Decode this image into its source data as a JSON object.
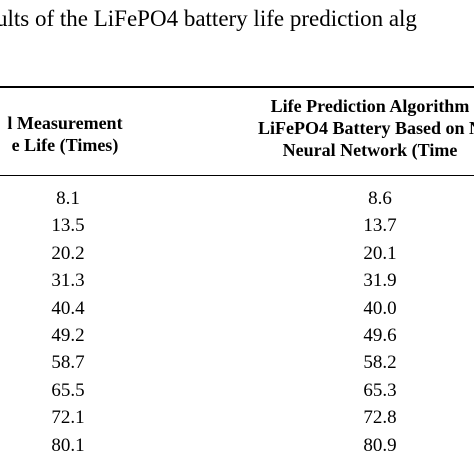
{
  "caption": "ults of the LiFePO4 battery life prediction alg",
  "table": {
    "headers": [
      [
        "l Measurement",
        "e Life (Times)"
      ],
      [
        "Life Prediction Algorithm",
        "LiFePO4 Battery Based on N",
        "Neural Network (Time"
      ]
    ],
    "rows": [
      [
        "8.1",
        "8.6"
      ],
      [
        "13.5",
        "13.7"
      ],
      [
        "20.2",
        "20.1"
      ],
      [
        "31.3",
        "31.9"
      ],
      [
        "40.4",
        "40.0"
      ],
      [
        "49.2",
        "49.6"
      ],
      [
        "58.7",
        "58.2"
      ],
      [
        "65.5",
        "65.3"
      ],
      [
        "72.1",
        "72.8"
      ],
      [
        "80.1",
        "80.9"
      ]
    ]
  }
}
